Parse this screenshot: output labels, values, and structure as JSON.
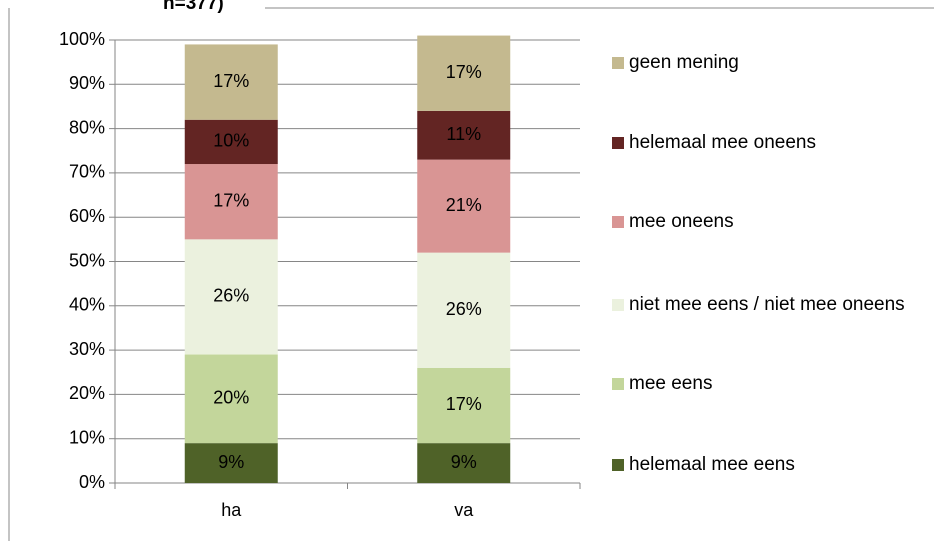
{
  "chart_data": {
    "type": "stacked_bar",
    "title": "n=377)",
    "categories": [
      "ha",
      "va"
    ],
    "series": [
      {
        "name": "helemaal mee eens",
        "color": "#4f6228",
        "values": [
          9,
          9
        ],
        "value_labels": [
          "9%",
          "9%"
        ]
      },
      {
        "name": "mee eens",
        "color": "#c3d69b",
        "values": [
          20,
          17
        ],
        "value_labels": [
          "20%",
          "17%"
        ]
      },
      {
        "name": "niet mee eens / niet mee oneens",
        "color": "#ebf1de",
        "values": [
          26,
          26
        ],
        "value_labels": [
          "26%",
          "26%"
        ]
      },
      {
        "name": "mee oneens",
        "color": "#d99594",
        "values": [
          17,
          21
        ],
        "value_labels": [
          "17%",
          "21%"
        ]
      },
      {
        "name": "helemaal mee oneens",
        "color": "#632523",
        "values": [
          10,
          11
        ],
        "value_labels": [
          "10%",
          "11%"
        ]
      },
      {
        "name": "geen mening",
        "color": "#c4b98f",
        "values": [
          17,
          17
        ],
        "value_labels": [
          "17%",
          "17%"
        ]
      }
    ],
    "ylim": [
      0,
      100
    ],
    "yticks": [
      {
        "value": 0,
        "label": "0%"
      },
      {
        "value": 10,
        "label": "10%"
      },
      {
        "value": 20,
        "label": "20%"
      },
      {
        "value": 30,
        "label": "30%"
      },
      {
        "value": 40,
        "label": "40%"
      },
      {
        "value": 50,
        "label": "50%"
      },
      {
        "value": 60,
        "label": "60%"
      },
      {
        "value": 70,
        "label": "70%"
      },
      {
        "value": 80,
        "label": "80%"
      },
      {
        "value": 90,
        "label": "90%"
      },
      {
        "value": 100,
        "label": "100%"
      }
    ],
    "grid": true,
    "legend": "right"
  }
}
